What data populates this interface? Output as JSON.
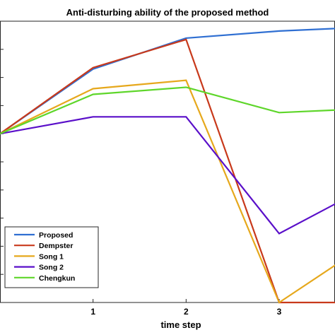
{
  "chart_data": {
    "type": "line",
    "title": "Anti-disturbing ability of the proposed method",
    "xlabel": "time step",
    "ylabel": "",
    "x": [
      0,
      1,
      2,
      3,
      4
    ],
    "xticks": [
      1,
      2,
      3
    ],
    "xlim": [
      0,
      3.6
    ],
    "ylim": [
      0,
      1
    ],
    "grid": false,
    "legend_position": "bottom-left",
    "series": [
      {
        "name": "Proposed",
        "color": "#2f6fd2",
        "values": [
          0.6,
          0.83,
          0.94,
          0.965,
          0.98
        ]
      },
      {
        "name": "Dempster",
        "color": "#c8391b",
        "values": [
          0.6,
          0.835,
          0.935,
          0.0,
          0.0
        ]
      },
      {
        "name": "Song 1",
        "color": "#e6a81c",
        "values": [
          0.6,
          0.76,
          0.79,
          0.0,
          0.22
        ]
      },
      {
        "name": "Song 2",
        "color": "#5a0fc9",
        "values": [
          0.6,
          0.66,
          0.66,
          0.245,
          0.42
        ]
      },
      {
        "name": "Chengkun",
        "color": "#5ed62a",
        "values": [
          0.6,
          0.74,
          0.765,
          0.675,
          0.69
        ]
      }
    ]
  }
}
